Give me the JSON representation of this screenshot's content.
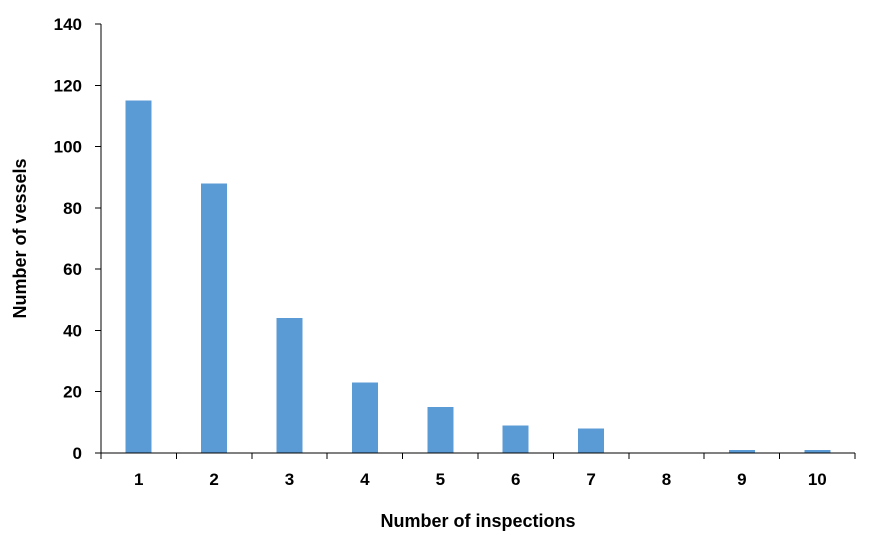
{
  "chart_data": {
    "type": "bar",
    "categories": [
      "1",
      "2",
      "3",
      "4",
      "5",
      "6",
      "7",
      "8",
      "9",
      "10"
    ],
    "values": [
      115,
      88,
      44,
      23,
      15,
      9,
      8,
      0,
      1,
      1
    ],
    "title": "",
    "xlabel": "Number of inspections",
    "ylabel": "Number of vessels",
    "ylim": [
      0,
      140
    ],
    "yticks": [
      0,
      20,
      40,
      60,
      80,
      100,
      120,
      140
    ],
    "grid": false,
    "legend": "none",
    "bar_color": "#5b9bd5",
    "axis_color": "#000000"
  }
}
